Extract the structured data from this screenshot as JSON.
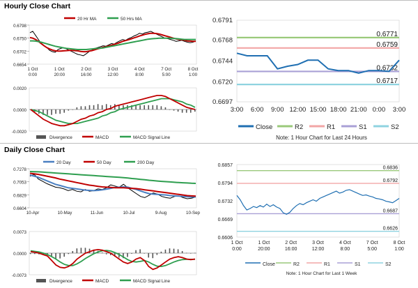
{
  "hourly": {
    "title": "Hourly Close Chart",
    "ma_chart": {
      "type": "line",
      "legend": [
        "20 Hr MA",
        "50 Hrs MA"
      ],
      "y_ticks": [
        "0.6798",
        "0.6750",
        "0.6702",
        "0.6654"
      ],
      "ylim": [
        0.6654,
        0.6798
      ],
      "x_ticks": [
        [
          "1 Oct",
          "0:00"
        ],
        [
          "1 Oct",
          "20:00"
        ],
        [
          "2 Oct",
          "16:00"
        ],
        [
          "3 Oct",
          "12:00"
        ],
        [
          "4 Oct",
          "8:00"
        ],
        [
          "7 Oct",
          "5:00"
        ],
        [
          "8 Oct",
          "1:00"
        ]
      ],
      "colors": {
        "price": "#000000",
        "ma20": "#c00000",
        "ma50": "#2e9e4f"
      },
      "series": [
        {
          "name": "price",
          "values": [
            0.677,
            0.6775,
            0.676,
            0.6745,
            0.673,
            0.6722,
            0.6715,
            0.6705,
            0.67,
            0.6698,
            0.6708,
            0.6712,
            0.6715,
            0.671,
            0.6705,
            0.67,
            0.6695,
            0.669,
            0.6688,
            0.6685,
            0.6692,
            0.67,
            0.6705,
            0.6712,
            0.6715,
            0.6718,
            0.6722,
            0.672,
            0.6725,
            0.673,
            0.6728,
            0.6735,
            0.674,
            0.6745,
            0.6742,
            0.6748,
            0.6752,
            0.6758,
            0.6762,
            0.6768,
            0.6765,
            0.677,
            0.6772,
            0.6775,
            0.677,
            0.6765,
            0.676,
            0.6755,
            0.675,
            0.6748,
            0.6745,
            0.6742,
            0.6738,
            0.674,
            0.6742,
            0.6738,
            0.6735,
            0.6733,
            0.6735,
            0.674
          ]
        },
        {
          "name": "20 Hr MA",
          "values": [
            0.6752,
            0.675,
            0.6745,
            0.6738,
            0.673,
            0.6722,
            0.6715,
            0.671,
            0.6706,
            0.6703,
            0.6702,
            0.6702,
            0.6703,
            0.6704,
            0.6705,
            0.6705,
            0.6704,
            0.6703,
            0.6701,
            0.67,
            0.67,
            0.6702,
            0.6704,
            0.6707,
            0.671,
            0.6713,
            0.6716,
            0.6718,
            0.6721,
            0.6724,
            0.6727,
            0.673,
            0.6734,
            0.6738,
            0.6741,
            0.6744,
            0.6747,
            0.6751,
            0.6754,
            0.6758,
            0.6761,
            0.6764,
            0.6766,
            0.6768,
            0.6768,
            0.6767,
            0.6765,
            0.6762,
            0.6759,
            0.6756,
            0.6753,
            0.675,
            0.6747,
            0.6745,
            0.6744,
            0.6742,
            0.674,
            0.6739,
            0.6738,
            0.6738
          ]
        },
        {
          "name": "50 Hrs MA",
          "values": [
            0.674,
            0.674,
            0.6739,
            0.6737,
            0.6735,
            0.6732,
            0.6729,
            0.6726,
            0.6723,
            0.672,
            0.6718,
            0.6716,
            0.6714,
            0.6712,
            0.6711,
            0.671,
            0.6709,
            0.6708,
            0.6708,
            0.6708,
            0.6708,
            0.6709,
            0.671,
            0.6711,
            0.6712,
            0.6713,
            0.6714,
            0.6716,
            0.6718,
            0.672,
            0.6722,
            0.6724,
            0.6726,
            0.6728,
            0.673,
            0.6732,
            0.6734,
            0.6736,
            0.6738,
            0.674,
            0.6742,
            0.6744,
            0.6746,
            0.6747,
            0.6748,
            0.6749,
            0.675,
            0.675,
            0.675,
            0.675,
            0.675,
            0.6749,
            0.6748,
            0.6747,
            0.6746,
            0.6745,
            0.6745,
            0.6745,
            0.6745,
            0.6745
          ]
        }
      ]
    },
    "macd_chart": {
      "type": "line",
      "y_ticks": [
        "0.0020",
        "0.0000",
        "-0.0020"
      ],
      "ylim": [
        -0.002,
        0.002
      ],
      "legend": [
        "Divergence",
        "MACD",
        "MACD Signal Line"
      ],
      "colors": {
        "divergence": "#555555",
        "macd": "#c00000",
        "signal": "#2e9e4f"
      },
      "macd": [
        0.0,
        -0.0003,
        -0.0006,
        -0.0009,
        -0.0011,
        -0.0013,
        -0.0014,
        -0.0015,
        -0.0015,
        -0.0014,
        -0.0013,
        -0.0011,
        -0.0009,
        -0.0008,
        -0.0006,
        -0.0005,
        -0.0003,
        -0.0002,
        0.0,
        0.0001,
        0.0003,
        0.0004,
        0.0005,
        0.0006,
        0.0007,
        0.0008,
        0.0009,
        0.001,
        0.0011,
        0.0012,
        0.0013,
        0.0013,
        0.0012,
        0.001,
        0.0008,
        0.0006,
        0.0004,
        0.0002,
        0.0001,
        0.0
      ],
      "signal": [
        0.0,
        -0.0001,
        -0.0002,
        -0.0004,
        -0.0006,
        -0.0008,
        -0.001,
        -0.0011,
        -0.0012,
        -0.0013,
        -0.0013,
        -0.0013,
        -0.0012,
        -0.0011,
        -0.001,
        -0.0009,
        -0.0008,
        -0.0006,
        -0.0005,
        -0.0003,
        -0.0002,
        0.0,
        0.0001,
        0.0002,
        0.0003,
        0.0004,
        0.0005,
        0.0006,
        0.0007,
        0.0008,
        0.0009,
        0.001,
        0.001,
        0.001,
        0.0009,
        0.0008,
        0.0007,
        0.0005,
        0.0004,
        0.0002
      ]
    },
    "close_chart": {
      "type": "line",
      "y_ticks": [
        "0.6791",
        "0.6768",
        "0.6744",
        "0.6720",
        "0.6697"
      ],
      "ylim": [
        0.6697,
        0.6791
      ],
      "x_ticks": [
        "3:00",
        "6:00",
        "9:00",
        "12:00",
        "15:00",
        "18:00",
        "21:00",
        "0:00",
        "3:00"
      ],
      "levels": [
        {
          "name": "R2",
          "value": 0.6771,
          "label": "0.6771",
          "color": "#9ac97a"
        },
        {
          "name": "R1",
          "value": 0.6759,
          "label": "0.6759",
          "color": "#f2a6a6"
        },
        {
          "name": "S1",
          "value": 0.6732,
          "label": "0.6732",
          "color": "#a9a0d6"
        },
        {
          "name": "S2",
          "value": 0.6717,
          "label": "0.6717",
          "color": "#8fd3e0"
        }
      ],
      "close_color": "#1f6fb2",
      "close": [
        0.6753,
        0.675,
        0.675,
        0.675,
        0.6735,
        0.6738,
        0.674,
        0.6745,
        0.6745,
        0.6735,
        0.6733,
        0.6733,
        0.673,
        0.6733,
        0.6733,
        0.6732,
        0.6745
      ],
      "legend": [
        "Close",
        "R2",
        "R1",
        "S1",
        "S2"
      ],
      "note": "Note: 1 Hour Chart for Last 24 Hours"
    }
  },
  "daily": {
    "title": "Daily Close Chart",
    "ma_chart": {
      "type": "line",
      "legend": [
        "20 Day",
        "50 Day",
        "200 Day"
      ],
      "y_ticks": [
        "0.7278",
        "0.7053",
        "0.6829",
        "0.6604"
      ],
      "ylim": [
        0.6604,
        0.7278
      ],
      "x_ticks": [
        "10-Apr",
        "10-May",
        "11-Jun",
        "10-Jul",
        "9-Aug",
        "10-Sep"
      ],
      "colors": {
        "price": "#000000",
        "d20": "#4a7fc1",
        "d50": "#c00000",
        "d200": "#2e9e4f"
      },
      "series": [
        {
          "name": "price",
          "values": [
            0.715,
            0.718,
            0.71,
            0.706,
            0.702,
            0.699,
            0.696,
            0.695,
            0.693,
            0.69,
            0.692,
            0.689,
            0.688,
            0.692,
            0.689,
            0.69,
            0.693,
            0.692,
            0.695,
            0.7,
            0.698,
            0.696,
            0.701,
            0.695,
            0.69,
            0.685,
            0.68,
            0.678,
            0.682,
            0.686,
            0.684,
            0.68,
            0.678,
            0.677,
            0.68,
            0.681,
            0.678,
            0.676,
            0.677,
            0.679
          ]
        },
        {
          "name": "20 Day",
          "values": [
            0.717,
            0.715,
            0.713,
            0.71,
            0.707,
            0.704,
            0.701,
            0.699,
            0.697,
            0.695,
            0.694,
            0.693,
            0.692,
            0.691,
            0.6905,
            0.69,
            0.6905,
            0.6915,
            0.6925,
            0.694,
            0.6955,
            0.696,
            0.6965,
            0.696,
            0.694,
            0.692,
            0.6895,
            0.687,
            0.685,
            0.684,
            0.6835,
            0.683,
            0.6825,
            0.6815,
            0.681,
            0.6805,
            0.68,
            0.6795,
            0.679,
            0.679
          ]
        },
        {
          "name": "50 Day",
          "values": [
            0.72,
            0.719,
            0.718,
            0.7165,
            0.715,
            0.7135,
            0.712,
            0.71,
            0.7085,
            0.707,
            0.7055,
            0.704,
            0.7025,
            0.701,
            0.6995,
            0.6985,
            0.6975,
            0.6965,
            0.696,
            0.6955,
            0.695,
            0.695,
            0.695,
            0.6945,
            0.694,
            0.6935,
            0.6925,
            0.6915,
            0.6905,
            0.6895,
            0.6885,
            0.6875,
            0.6865,
            0.6855,
            0.6845,
            0.6835,
            0.6825,
            0.6815,
            0.681,
            0.6805
          ]
        },
        {
          "name": "200 Day",
          "values": [
            0.723,
            0.7228,
            0.7225,
            0.722,
            0.7215,
            0.721,
            0.7205,
            0.72,
            0.7195,
            0.719,
            0.7185,
            0.718,
            0.7175,
            0.717,
            0.7165,
            0.716,
            0.7155,
            0.715,
            0.7145,
            0.714,
            0.7135,
            0.713,
            0.7125,
            0.7118,
            0.711,
            0.7103,
            0.7095,
            0.7088,
            0.708,
            0.7073,
            0.7066,
            0.706,
            0.7055,
            0.705,
            0.7045,
            0.704,
            0.7036,
            0.7032,
            0.7028,
            0.7025
          ]
        }
      ]
    },
    "macd_chart": {
      "type": "line",
      "y_ticks": [
        "0.0073",
        "0.0000",
        "-0.0073"
      ],
      "ylim": [
        -0.0073,
        0.0073
      ],
      "legend": [
        "Divergence",
        "MACD",
        "MACD Signal Line"
      ],
      "colors": {
        "divergence": "#555555",
        "macd": "#c00000",
        "signal": "#2e9e4f"
      },
      "macd": [
        0.0005,
        0.0003,
        0.0,
        -0.0005,
        -0.001,
        -0.0025,
        -0.004,
        -0.0048,
        -0.005,
        -0.0045,
        -0.0035,
        -0.002,
        -0.001,
        0.0,
        0.0005,
        0.001,
        0.0012,
        0.001,
        0.0005,
        0.0,
        -0.001,
        -0.002,
        -0.003,
        -0.0035,
        -0.003,
        -0.002,
        -0.0015,
        -0.0025,
        -0.0045,
        -0.0055,
        -0.005,
        -0.004,
        -0.003,
        -0.002,
        -0.0015,
        -0.0012,
        -0.0015,
        -0.002,
        -0.0022,
        -0.002
      ],
      "signal": [
        0.0008,
        0.0006,
        0.0004,
        0.0,
        -0.0005,
        -0.0012,
        -0.002,
        -0.003,
        -0.0038,
        -0.0042,
        -0.0042,
        -0.0036,
        -0.0028,
        -0.0018,
        -0.001,
        -0.0002,
        0.0004,
        0.0008,
        0.0009,
        0.0007,
        0.0002,
        -0.0005,
        -0.0013,
        -0.0022,
        -0.0028,
        -0.003,
        -0.0028,
        -0.0025,
        -0.003,
        -0.0038,
        -0.0044,
        -0.0045,
        -0.0042,
        -0.0036,
        -0.003,
        -0.0025,
        -0.0022,
        -0.0021,
        -0.0021,
        -0.0021
      ]
    },
    "close_chart": {
      "type": "line",
      "y_ticks": [
        "0.6857",
        "0.6794",
        "0.6732",
        "0.6669",
        "0.6606"
      ],
      "ylim": [
        0.6606,
        0.6857
      ],
      "x_ticks": [
        [
          "1 Oct",
          "0:00"
        ],
        [
          "1 Oct",
          "20:00"
        ],
        [
          "2 Oct",
          "16:00"
        ],
        [
          "3 Oct",
          "12:00"
        ],
        [
          "4 Oct",
          "8:00"
        ],
        [
          "7 Oct",
          "5:00"
        ],
        [
          "8 Oct",
          "1:00"
        ]
      ],
      "levels": [
        {
          "name": "R2",
          "value": 0.6836,
          "label": "0.6836",
          "color": "#9ac97a"
        },
        {
          "name": "R1",
          "value": 0.6792,
          "label": "0.6792",
          "color": "#f2a6a6"
        },
        {
          "name": "S1",
          "value": 0.6687,
          "label": "0.6687",
          "color": "#a9a0d6"
        },
        {
          "name": "S2",
          "value": 0.6626,
          "label": "0.6626",
          "color": "#8fd3e0"
        }
      ],
      "close_color": "#1f6fb2",
      "close": [
        0.675,
        0.6735,
        0.6715,
        0.67,
        0.6705,
        0.6712,
        0.6708,
        0.6715,
        0.671,
        0.672,
        0.6712,
        0.6718,
        0.671,
        0.6705,
        0.669,
        0.6685,
        0.6692,
        0.6705,
        0.6715,
        0.6722,
        0.6718,
        0.6725,
        0.673,
        0.6735,
        0.673,
        0.674,
        0.6745,
        0.675,
        0.6755,
        0.676,
        0.6765,
        0.6758,
        0.6762,
        0.6768,
        0.677,
        0.6765,
        0.676,
        0.6755,
        0.675,
        0.6752,
        0.6748,
        0.6745,
        0.674,
        0.6738,
        0.6735,
        0.673,
        0.6728,
        0.6725,
        0.6732,
        0.674
      ],
      "legend": [
        "Close",
        "R2",
        "R1",
        "S1",
        "S2"
      ],
      "note": "Note: 1 Hour Chart for Last 1 Week"
    }
  }
}
